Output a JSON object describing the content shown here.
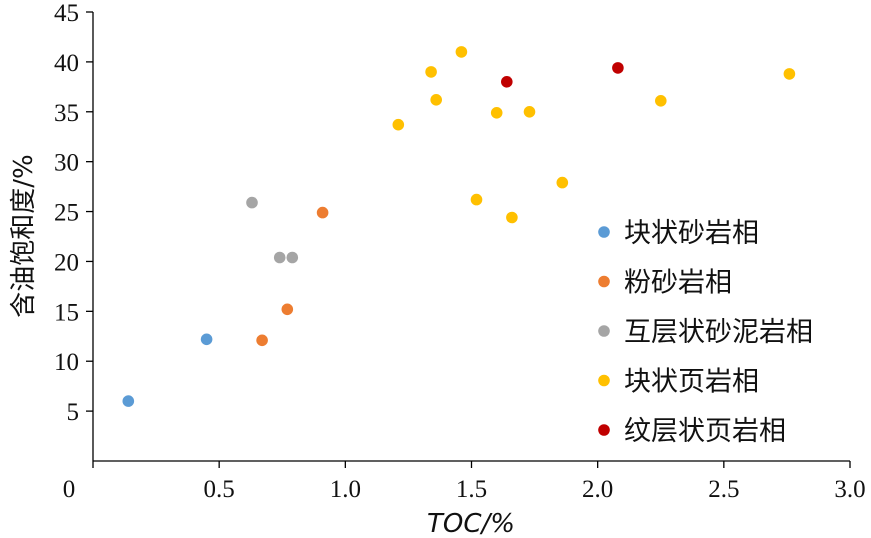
{
  "chart_data": {
    "type": "scatter",
    "title": "",
    "xlabel": "TOC/%",
    "ylabel": "含油饱和度/%",
    "xlim": [
      0,
      3.0
    ],
    "ylim": [
      0,
      45
    ],
    "x_ticks": [
      "0",
      "0.5",
      "1.0",
      "1.5",
      "2.0",
      "2.5",
      "3.0"
    ],
    "y_ticks": [
      "5",
      "10",
      "15",
      "20",
      "25",
      "30",
      "35",
      "40",
      "45"
    ],
    "grid": false,
    "legend_position": "right",
    "series": [
      {
        "name": "块状砂岩相",
        "color": "#5B9BD5",
        "points": [
          [
            0.14,
            6.0
          ],
          [
            0.45,
            12.2
          ]
        ]
      },
      {
        "name": "粉砂岩相",
        "color": "#ED7D31",
        "points": [
          [
            0.67,
            12.1
          ],
          [
            0.77,
            15.2
          ],
          [
            0.91,
            24.9
          ]
        ]
      },
      {
        "name": "互层状砂泥岩相",
        "color": "#A5A5A5",
        "points": [
          [
            0.63,
            25.9
          ],
          [
            0.74,
            20.4
          ],
          [
            0.79,
            20.4
          ]
        ]
      },
      {
        "name": "块状页岩相",
        "color": "#FFC000",
        "points": [
          [
            1.21,
            33.7
          ],
          [
            1.34,
            39.0
          ],
          [
            1.36,
            36.2
          ],
          [
            1.46,
            41.0
          ],
          [
            1.52,
            26.2
          ],
          [
            1.6,
            34.9
          ],
          [
            1.66,
            24.4
          ],
          [
            1.73,
            35.0
          ],
          [
            1.86,
            27.9
          ],
          [
            2.25,
            36.1
          ],
          [
            2.76,
            38.8
          ]
        ]
      },
      {
        "name": "纹层状页岩相",
        "color": "#C00000",
        "points": [
          [
            1.64,
            38.0
          ],
          [
            2.08,
            39.4
          ]
        ]
      }
    ]
  }
}
